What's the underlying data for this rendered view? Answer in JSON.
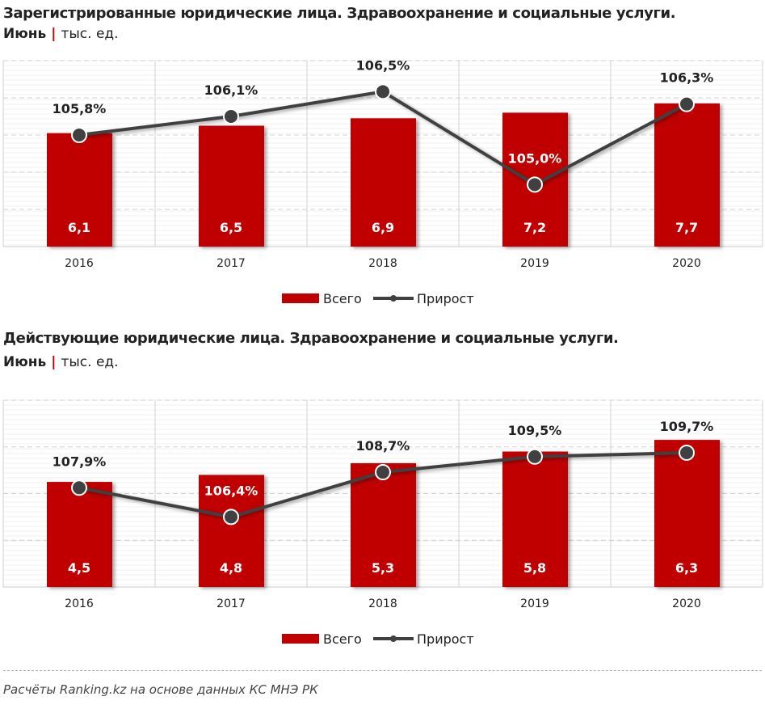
{
  "colors": {
    "bar": "#c00000",
    "line": "#404040",
    "grid": "#d0d0d0"
  },
  "footer": "Расчёты Ranking.kz на основе данных КС МНЭ РК",
  "chart_data": [
    {
      "type": "bar+line",
      "title": "Зарегистрированные юридические лица. Здравоохранение и социальные услуги.",
      "period": "Июнь",
      "unit": "тыс. ед.",
      "categories": [
        "2016",
        "2017",
        "2018",
        "2019",
        "2020"
      ],
      "series": [
        {
          "name": "Всего",
          "type": "bar",
          "values": [
            6.1,
            6.5,
            6.9,
            7.2,
            7.7
          ],
          "labels": [
            "6,1",
            "6,5",
            "6,9",
            "7,2",
            "7,7"
          ]
        },
        {
          "name": "Прирост",
          "type": "line",
          "values": [
            105.8,
            106.1,
            106.5,
            105.0,
            106.3
          ],
          "labels": [
            "105,8%",
            "106,1%",
            "106,5%",
            "105,0%",
            "106,3%"
          ]
        }
      ],
      "ylim": [
        0,
        10
      ],
      "y2lim": [
        104,
        107
      ],
      "grid": true,
      "legend": "bottom"
    },
    {
      "type": "bar+line",
      "title": "Действующие юридические лица. Здравоохранение и социальные услуги.",
      "period": "Июнь",
      "unit": "тыс. ед.",
      "categories": [
        "2016",
        "2017",
        "2018",
        "2019",
        "2020"
      ],
      "series": [
        {
          "name": "Всего",
          "type": "bar",
          "values": [
            4.5,
            4.8,
            5.3,
            5.8,
            6.3
          ],
          "labels": [
            "4,5",
            "4,8",
            "5,3",
            "5,8",
            "6,3"
          ]
        },
        {
          "name": "Прирост",
          "type": "line",
          "values": [
            107.9,
            106.4,
            108.7,
            109.5,
            109.7
          ],
          "labels": [
            "107,9%",
            "106,4%",
            "108,7%",
            "109,5%",
            "109,7%"
          ]
        }
      ],
      "ylim": [
        0,
        8
      ],
      "y2lim": [
        102.8,
        112.4
      ],
      "grid": true,
      "legend": "bottom"
    }
  ]
}
